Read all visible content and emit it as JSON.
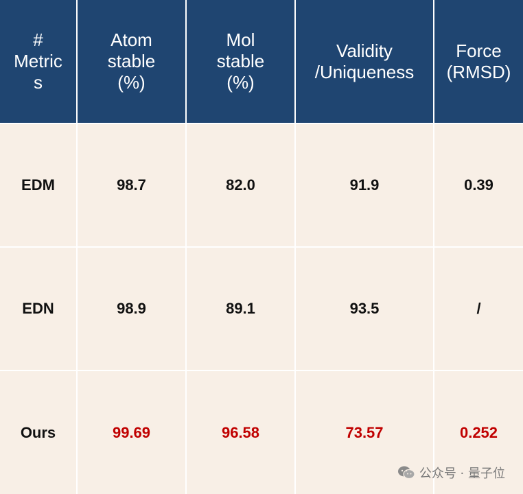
{
  "header": [
    "#\nMetric\ns",
    "Atom\nstable\n(%)",
    "Mol\nstable\n(%)",
    "Validity\n/Uniqueness",
    "Force\n(RMSD)"
  ],
  "rows": [
    {
      "label": "EDM",
      "cells": [
        "98.7",
        "82.0",
        "91.9",
        "0.39"
      ]
    },
    {
      "label": "EDN",
      "cells": [
        "98.9",
        "89.1",
        "93.5",
        "/"
      ]
    },
    {
      "label": "Ours",
      "cells": [
        "99.69",
        "96.58",
        "73.57",
        "0.252"
      ]
    }
  ],
  "colors": {
    "header_bg": "#1f4571",
    "body_bg": "#f8efe6",
    "highlight_text": "#c00000"
  },
  "watermark": {
    "text": "公众号 · 量子位",
    "icon": "wechat-icon"
  }
}
